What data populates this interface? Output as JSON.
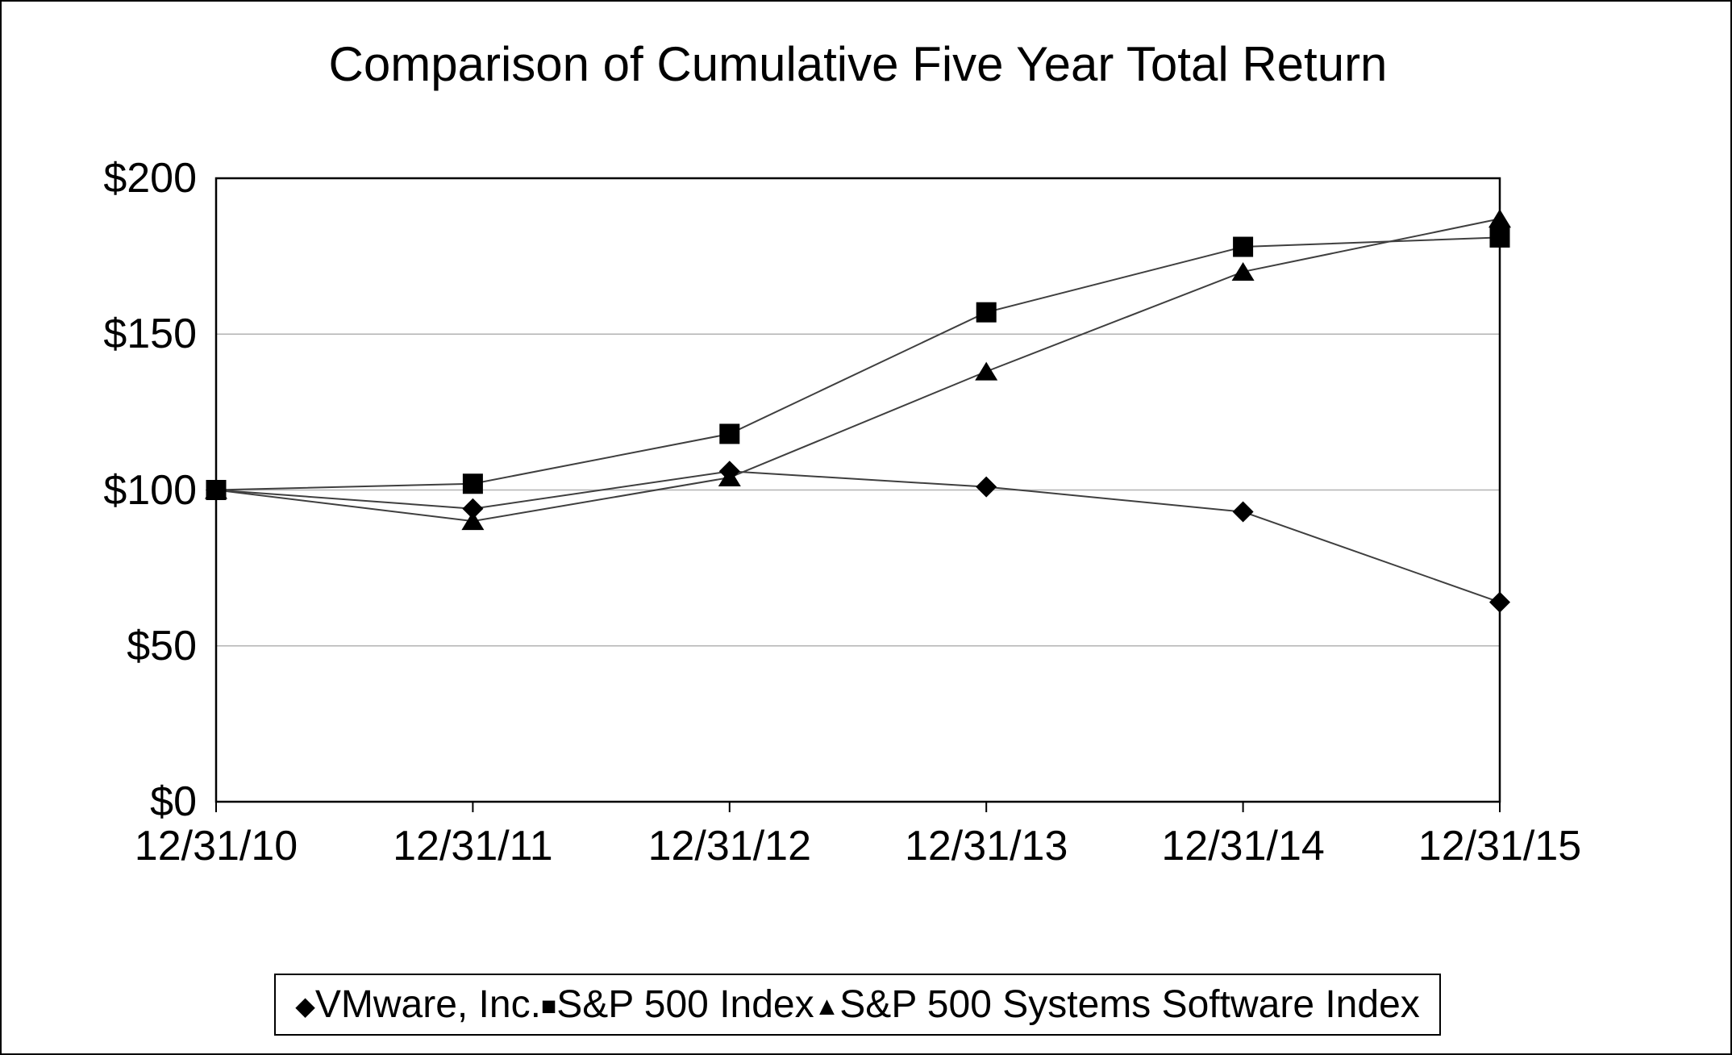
{
  "title": "Comparison of Cumulative Five Year Total Return",
  "chart_data": {
    "type": "line",
    "title": "Comparison of Cumulative Five Year Total Return",
    "x": [
      "12/31/10",
      "12/31/11",
      "12/31/12",
      "12/31/13",
      "12/31/14",
      "12/31/15"
    ],
    "series": [
      {
        "name": "VMware, Inc.",
        "marker": "diamond",
        "values": [
          100,
          94,
          106,
          101,
          93,
          64
        ]
      },
      {
        "name": "S&P 500 Index",
        "marker": "square",
        "values": [
          100,
          102,
          118,
          157,
          178,
          181
        ]
      },
      {
        "name": "S&P 500 Systems Software Index",
        "marker": "triangle",
        "values": [
          100,
          90,
          104,
          138,
          170,
          187
        ]
      }
    ],
    "yticks": [
      {
        "value": 0,
        "label": "$0"
      },
      {
        "value": 50,
        "label": "$50"
      },
      {
        "value": 100,
        "label": "$100"
      },
      {
        "value": 150,
        "label": "$150"
      },
      {
        "value": 200,
        "label": "$200"
      }
    ],
    "ylim": [
      0,
      200
    ],
    "xlabel": "",
    "ylabel": "",
    "grid": "horizontal",
    "legend_position": "bottom",
    "colors": {
      "marker": "#000000",
      "line": "#3f3f3f",
      "grid": "#b3b3b3",
      "axis": "#000000",
      "background": "#ffffff"
    },
    "marker_glyphs": {
      "diamond": "◆",
      "square": "■",
      "triangle": "▲"
    }
  }
}
